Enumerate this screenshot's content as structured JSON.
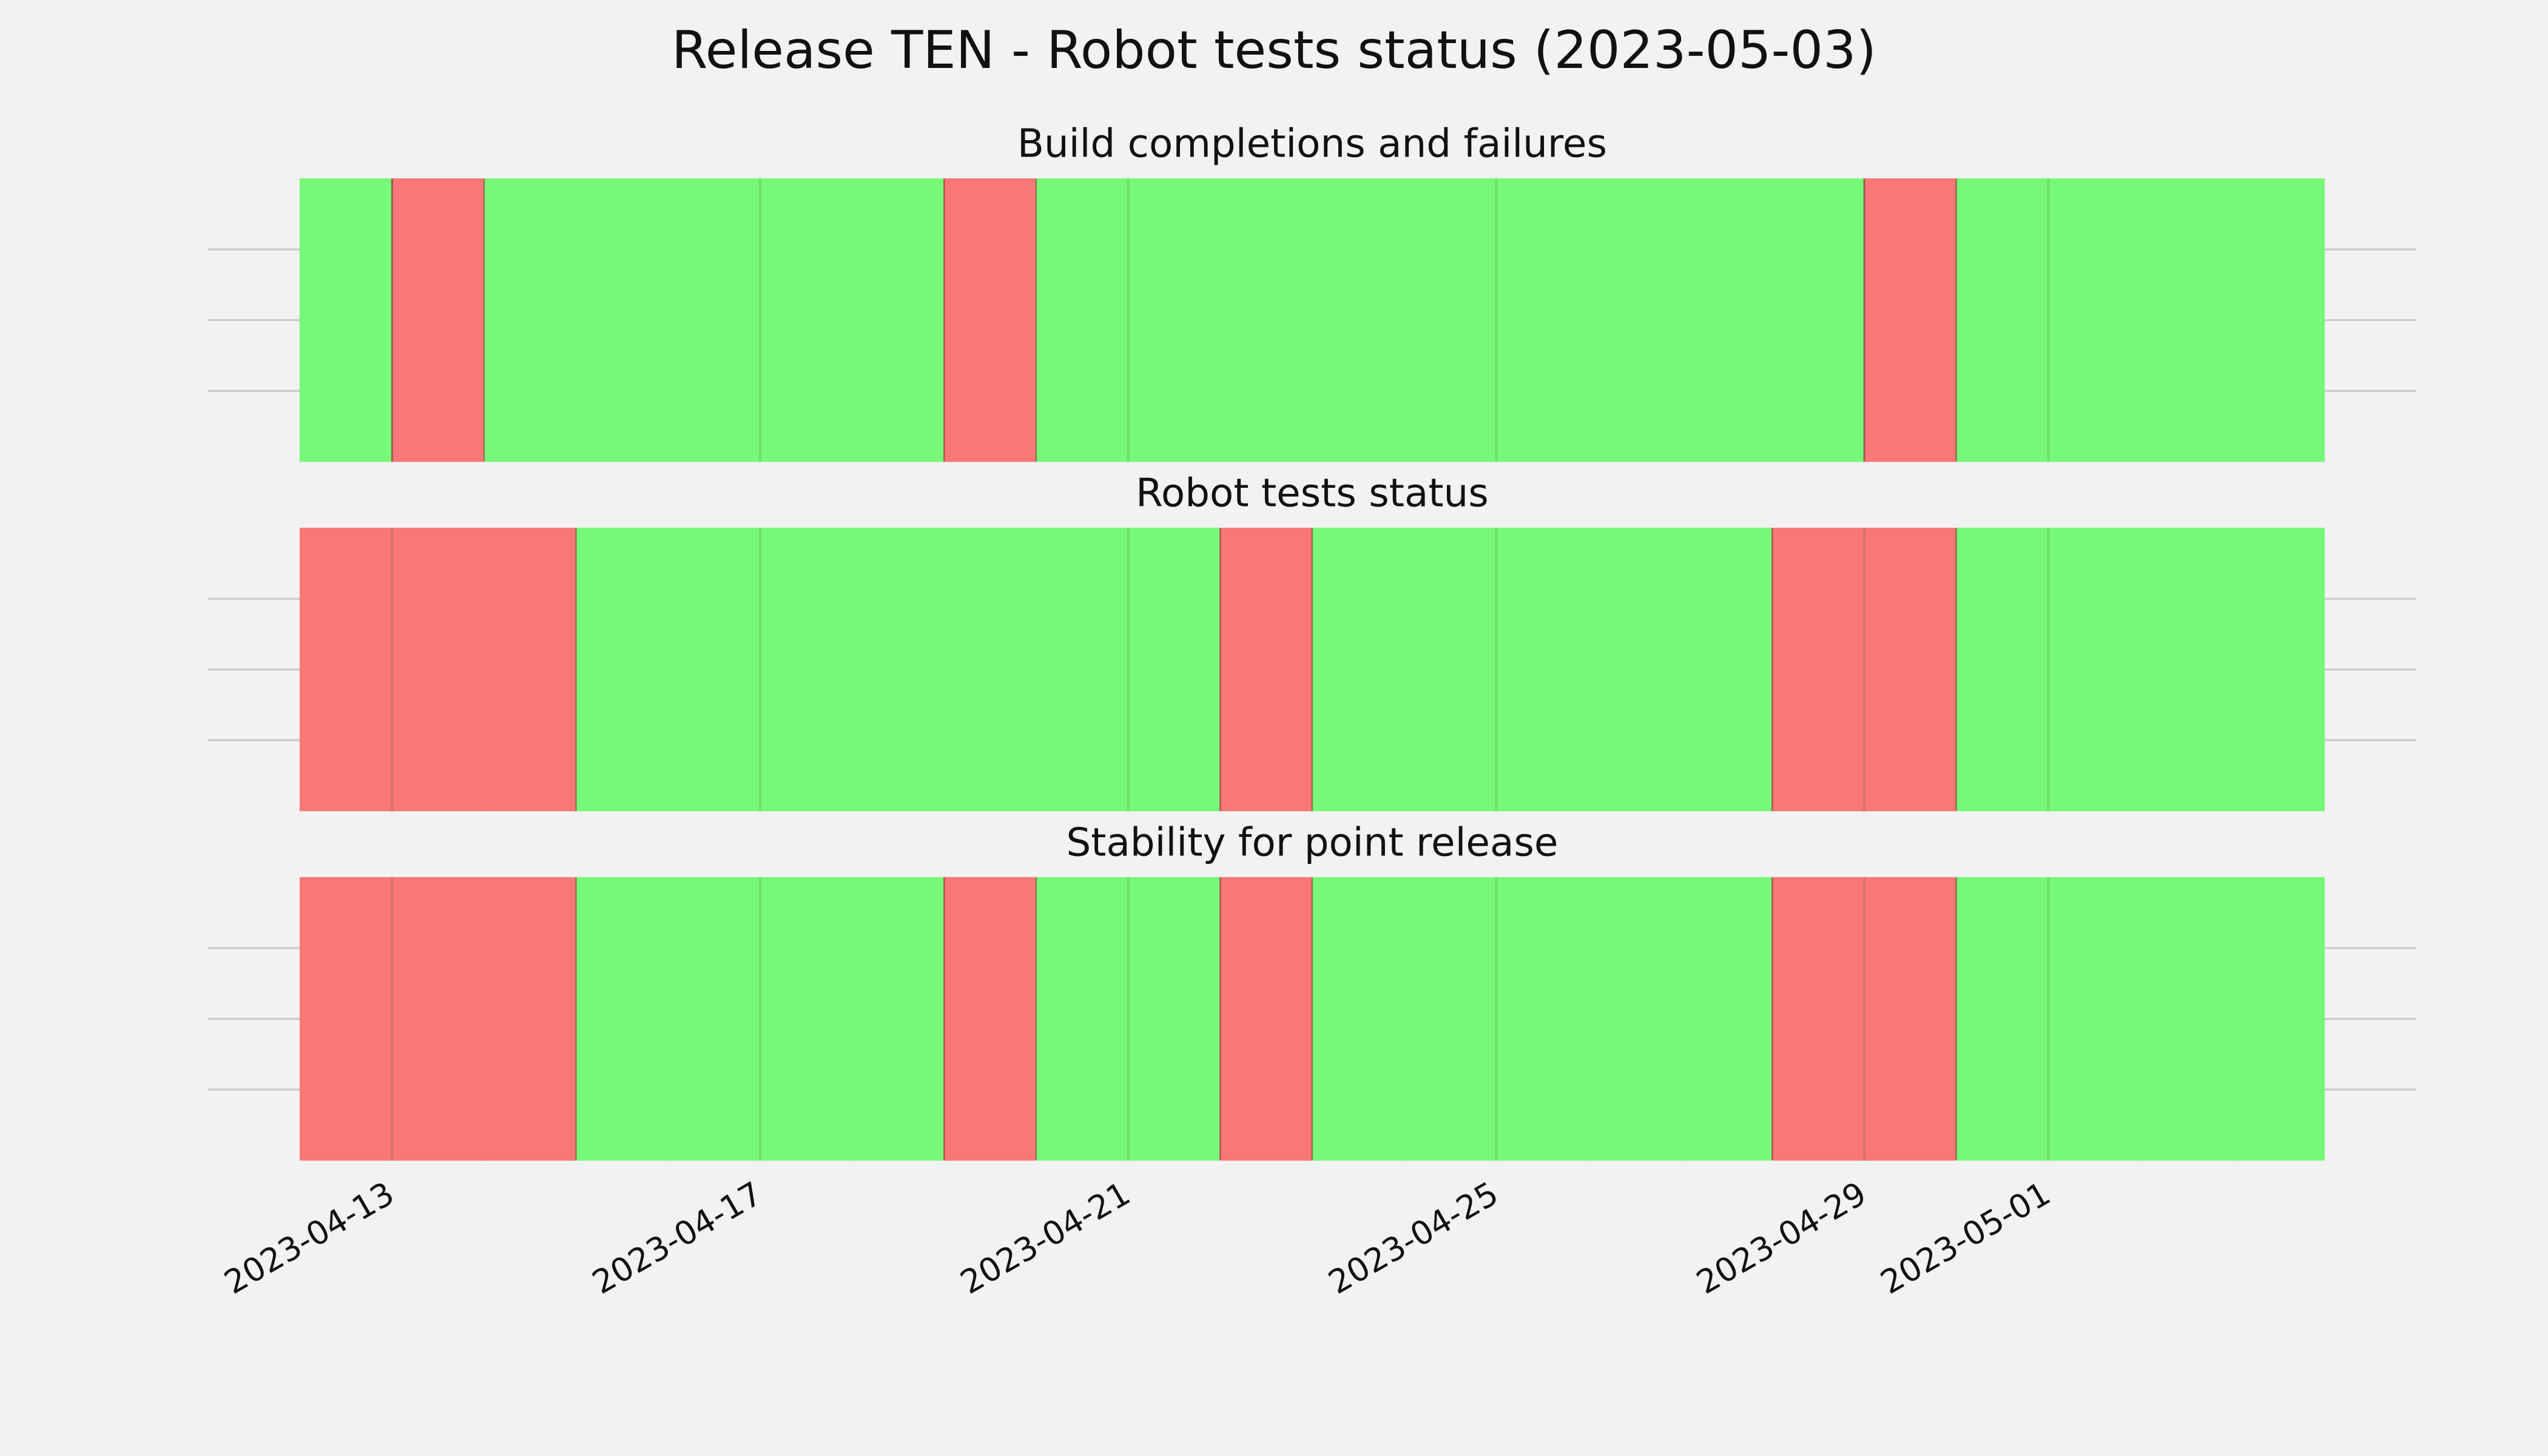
{
  "title": "Release TEN - Robot tests status (2023-05-03)",
  "chart_data": [
    {
      "type": "status",
      "title": "Build completions and failures",
      "x": [
        "2023-04-12",
        "2023-04-13",
        "2023-04-14",
        "2023-04-15",
        "2023-04-16",
        "2023-04-17",
        "2023-04-18",
        "2023-04-19",
        "2023-04-20",
        "2023-04-21",
        "2023-04-22",
        "2023-04-23",
        "2023-04-24",
        "2023-04-25",
        "2023-04-26",
        "2023-04-27",
        "2023-04-28",
        "2023-04-29",
        "2023-04-30",
        "2023-05-01",
        "2023-05-02",
        "2023-05-03"
      ],
      "values": [
        1,
        0,
        1,
        1,
        1,
        1,
        1,
        0,
        1,
        1,
        1,
        1,
        1,
        1,
        1,
        1,
        1,
        0,
        1,
        1,
        1,
        1
      ],
      "colors": [
        "#f87878",
        "#78f878"
      ],
      "xlim": [
        "2023-04-11",
        "2023-05-05"
      ],
      "xticks": [
        "2023-04-13",
        "2023-04-17",
        "2023-04-21",
        "2023-04-25",
        "2023-04-29",
        "2023-05-01"
      ],
      "ylim": [
        0,
        1
      ],
      "yticks": [
        0.25,
        0.5,
        0.75
      ],
      "grid": true,
      "show_xtick_labels": false
    },
    {
      "type": "status",
      "title": "Robot tests status",
      "x": [
        "2023-04-12",
        "2023-04-13",
        "2023-04-14",
        "2023-04-15",
        "2023-04-16",
        "2023-04-17",
        "2023-04-18",
        "2023-04-19",
        "2023-04-20",
        "2023-04-21",
        "2023-04-22",
        "2023-04-23",
        "2023-04-24",
        "2023-04-25",
        "2023-04-26",
        "2023-04-27",
        "2023-04-28",
        "2023-04-29",
        "2023-04-30",
        "2023-05-01",
        "2023-05-02",
        "2023-05-03"
      ],
      "values": [
        0,
        0,
        0,
        1,
        1,
        1,
        1,
        1,
        1,
        1,
        0,
        1,
        1,
        1,
        1,
        1,
        0,
        0,
        1,
        1,
        1,
        1
      ],
      "colors": [
        "#f87878",
        "#78f878"
      ],
      "xlim": [
        "2023-04-11",
        "2023-05-05"
      ],
      "xticks": [
        "2023-04-13",
        "2023-04-17",
        "2023-04-21",
        "2023-04-25",
        "2023-04-29",
        "2023-05-01"
      ],
      "ylim": [
        0,
        1
      ],
      "yticks": [
        0.25,
        0.5,
        0.75
      ],
      "grid": true,
      "show_xtick_labels": false
    },
    {
      "type": "status",
      "title": "Stability for point release",
      "x": [
        "2023-04-12",
        "2023-04-13",
        "2023-04-14",
        "2023-04-15",
        "2023-04-16",
        "2023-04-17",
        "2023-04-18",
        "2023-04-19",
        "2023-04-20",
        "2023-04-21",
        "2023-04-22",
        "2023-04-23",
        "2023-04-24",
        "2023-04-25",
        "2023-04-26",
        "2023-04-27",
        "2023-04-28",
        "2023-04-29",
        "2023-04-30",
        "2023-05-01",
        "2023-05-02",
        "2023-05-03"
      ],
      "values": [
        0,
        0,
        0,
        1,
        1,
        1,
        1,
        0,
        1,
        1,
        0,
        1,
        1,
        1,
        1,
        1,
        0,
        0,
        1,
        1,
        1,
        1
      ],
      "colors": [
        "#f87878",
        "#78f878"
      ],
      "xlim": [
        "2023-04-11",
        "2023-05-05"
      ],
      "xticks": [
        "2023-04-13",
        "2023-04-17",
        "2023-04-21",
        "2023-04-25",
        "2023-04-29",
        "2023-05-01"
      ],
      "ylim": [
        0,
        1
      ],
      "yticks": [
        0.25,
        0.5,
        0.75
      ],
      "grid": true,
      "show_xtick_labels": true
    }
  ]
}
